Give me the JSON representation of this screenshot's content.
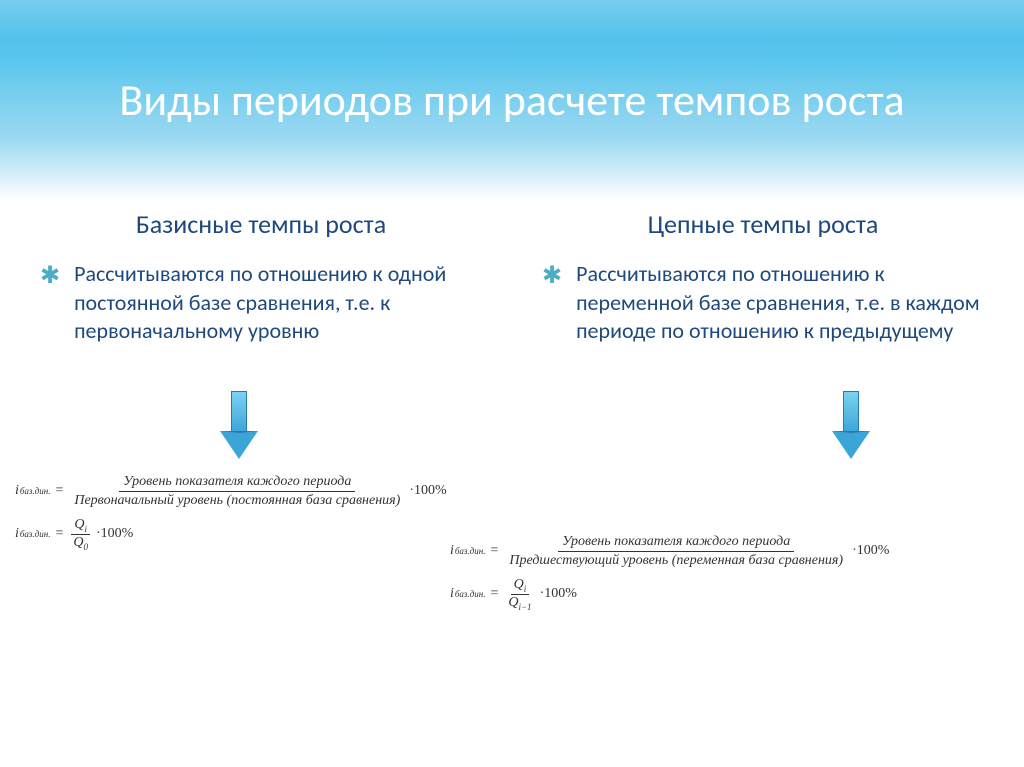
{
  "title": "Виды периодов при расчете темпов роста",
  "left": {
    "heading": "Базисные темпы роста",
    "desc": "Рассчитываются по отношению к одной постоянной базе сравнения, т.е. к первоначальному уровню",
    "formula1": {
      "lhs": "i",
      "lhs_sub": "баз.дин.",
      "num": "Уровень показателя каждого периода",
      "den": "Первоначальный уровень (постоянная база сравнения)",
      "tail": "·100%"
    },
    "formula2": {
      "lhs": "i",
      "lhs_sub": "баз.дин.",
      "num": "Q",
      "num_sub": "i",
      "den": "Q",
      "den_sub": "0",
      "tail": "·100%"
    }
  },
  "right": {
    "heading": "Цепные темпы роста",
    "desc": "Рассчитываются по отношению к  переменной базе сравнения, т.е. в каждом периоде по отношению к предыдущему",
    "formula1": {
      "lhs": "i",
      "lhs_sub": "баз.дин.",
      "num": "Уровень показателя каждого периода",
      "den": "Предшествующий уровень (переменная база сравнения)",
      "tail": "·100%"
    },
    "formula2": {
      "lhs": "i",
      "lhs_sub": "баз.дин.",
      "num": "Q",
      "num_sub": "i",
      "den": "Q",
      "den_sub": "i−1",
      "tail": "·100%"
    }
  },
  "styling": {
    "header_gradient_top": "#3fb9e8",
    "header_gradient_bottom": "#ffffff",
    "title_color": "#ffffff",
    "title_fontsize": 44,
    "subheading_color": "#1f497d",
    "subheading_fontsize": 26,
    "desc_color": "#1f497d",
    "desc_fontsize": 22,
    "bullet_color": "#4bacc6",
    "arrow_fill_top": "#7bd2f0",
    "arrow_fill_bottom": "#3ca5d8",
    "arrow_border": "#2a7aa8",
    "formula_font": "Times New Roman",
    "formula_fontsize": 14,
    "background": "#ffffff"
  }
}
